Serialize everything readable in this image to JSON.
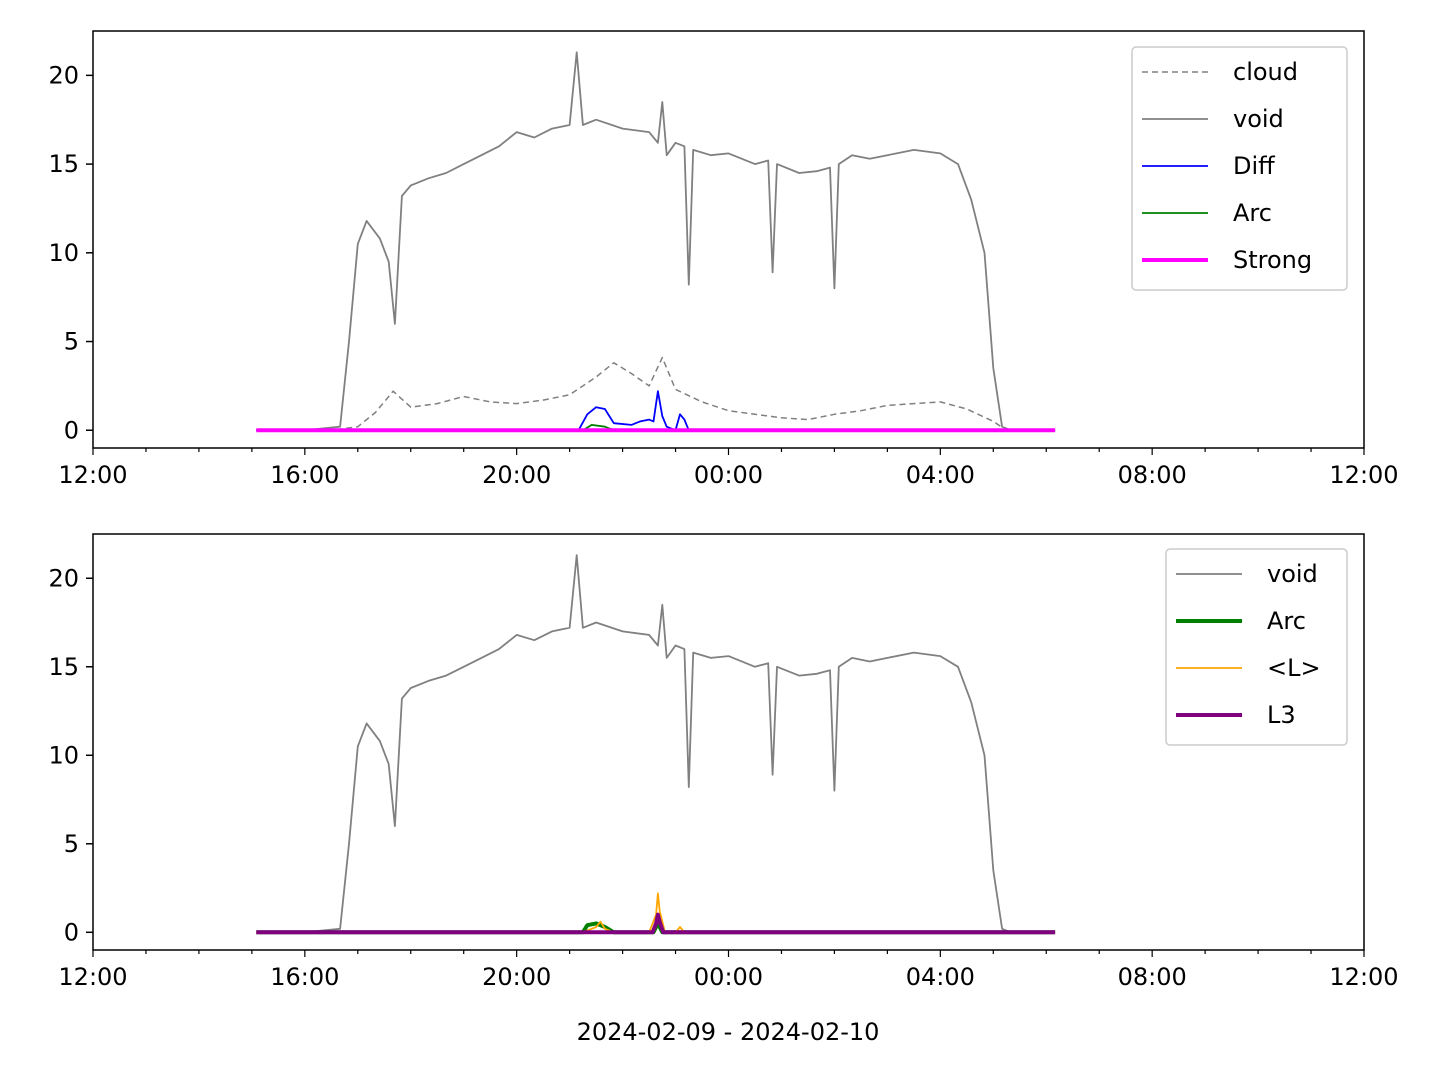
{
  "figure_xlabel": "2024-02-09 - 2024-02-10",
  "colors": {
    "cloud": "#808080",
    "void": "#808080",
    "Diff": "#0000ff",
    "Arc": "#008000",
    "Strong": "#ff00ff",
    "L_avg": "#ffa500",
    "L3": "#800080"
  },
  "chart_data": [
    {
      "type": "line",
      "panel": "top",
      "xlim": [
        "2024-02-09 12:00",
        "2024-02-10 12:00"
      ],
      "ylim": [
        -1,
        22.5
      ],
      "xticks": [
        "12:00",
        "16:00",
        "20:00",
        "00:00",
        "04:00",
        "08:00",
        "12:00"
      ],
      "yticks": [
        0,
        5,
        10,
        15,
        20
      ],
      "legend_position": "top-right",
      "grid": false,
      "series": [
        {
          "name": "cloud",
          "style": "dashed",
          "x": [
            "2024-02-09 15:05",
            "2024-02-09 16:00",
            "2024-02-09 16:30",
            "2024-02-09 17:00",
            "2024-02-09 17:20",
            "2024-02-09 17:40",
            "2024-02-09 18:00",
            "2024-02-09 18:30",
            "2024-02-09 19:00",
            "2024-02-09 19:30",
            "2024-02-09 20:00",
            "2024-02-09 20:30",
            "2024-02-09 21:00",
            "2024-02-09 21:30",
            "2024-02-09 21:50",
            "2024-02-09 22:10",
            "2024-02-09 22:30",
            "2024-02-09 22:45",
            "2024-02-09 23:00",
            "2024-02-09 23:30",
            "2024-02-10 00:00",
            "2024-02-10 00:30",
            "2024-02-10 01:00",
            "2024-02-10 01:30",
            "2024-02-10 02:00",
            "2024-02-10 02:30",
            "2024-02-10 03:00",
            "2024-02-10 03:30",
            "2024-02-10 04:00",
            "2024-02-10 04:30",
            "2024-02-10 05:00",
            "2024-02-10 05:15",
            "2024-02-10 06:10"
          ],
          "values": [
            0,
            0,
            0,
            0.2,
            1.0,
            2.2,
            1.3,
            1.5,
            1.9,
            1.6,
            1.5,
            1.7,
            2.0,
            3.0,
            3.8,
            3.2,
            2.5,
            4.1,
            2.3,
            1.6,
            1.1,
            0.9,
            0.7,
            0.6,
            0.9,
            1.1,
            1.4,
            1.5,
            1.6,
            1.2,
            0.5,
            0,
            0
          ]
        },
        {
          "name": "void",
          "style": "solid",
          "x": [
            "2024-02-09 15:05",
            "2024-02-09 16:00",
            "2024-02-09 16:40",
            "2024-02-09 16:50",
            "2024-02-09 17:00",
            "2024-02-09 17:10",
            "2024-02-09 17:25",
            "2024-02-09 17:35",
            "2024-02-09 17:42",
            "2024-02-09 17:50",
            "2024-02-09 18:00",
            "2024-02-09 18:20",
            "2024-02-09 18:40",
            "2024-02-09 19:00",
            "2024-02-09 19:20",
            "2024-02-09 19:40",
            "2024-02-09 20:00",
            "2024-02-09 20:20",
            "2024-02-09 20:40",
            "2024-02-09 21:00",
            "2024-02-09 21:08",
            "2024-02-09 21:15",
            "2024-02-09 21:30",
            "2024-02-09 22:00",
            "2024-02-09 22:30",
            "2024-02-09 22:40",
            "2024-02-09 22:45",
            "2024-02-09 22:50",
            "2024-02-09 23:00",
            "2024-02-09 23:10",
            "2024-02-09 23:15",
            "2024-02-09 23:20",
            "2024-02-09 23:40",
            "2024-02-10 00:00",
            "2024-02-10 00:30",
            "2024-02-10 00:45",
            "2024-02-10 00:50",
            "2024-02-10 00:55",
            "2024-02-10 01:20",
            "2024-02-10 01:40",
            "2024-02-10 01:55",
            "2024-02-10 02:00",
            "2024-02-10 02:05",
            "2024-02-10 02:20",
            "2024-02-10 02:40",
            "2024-02-10 03:00",
            "2024-02-10 03:30",
            "2024-02-10 04:00",
            "2024-02-10 04:20",
            "2024-02-10 04:35",
            "2024-02-10 04:50",
            "2024-02-10 05:00",
            "2024-02-10 05:10",
            "2024-02-10 05:20",
            "2024-02-10 06:10"
          ],
          "values": [
            0,
            0,
            0.2,
            5.0,
            10.5,
            11.8,
            10.8,
            9.5,
            6.0,
            13.2,
            13.8,
            14.2,
            14.5,
            15.0,
            15.5,
            16.0,
            16.8,
            16.5,
            17.0,
            17.2,
            21.3,
            17.2,
            17.5,
            17.0,
            16.8,
            16.2,
            18.5,
            15.5,
            16.2,
            16.0,
            8.2,
            15.8,
            15.5,
            15.6,
            15.0,
            15.2,
            8.9,
            15.0,
            14.5,
            14.6,
            14.8,
            8.0,
            15.0,
            15.5,
            15.3,
            15.5,
            15.8,
            15.6,
            15.0,
            13.0,
            10.0,
            3.5,
            0.2,
            0,
            0
          ]
        },
        {
          "name": "Diff",
          "style": "solid",
          "x": [
            "2024-02-09 15:05",
            "2024-02-09 21:10",
            "2024-02-09 21:20",
            "2024-02-09 21:30",
            "2024-02-09 21:40",
            "2024-02-09 21:50",
            "2024-02-09 22:10",
            "2024-02-09 22:20",
            "2024-02-09 22:30",
            "2024-02-09 22:35",
            "2024-02-09 22:40",
            "2024-02-09 22:45",
            "2024-02-09 22:50",
            "2024-02-09 23:00",
            "2024-02-09 23:05",
            "2024-02-09 23:10",
            "2024-02-09 23:15",
            "2024-02-10 06:10"
          ],
          "values": [
            0,
            0,
            0.9,
            1.3,
            1.2,
            0.4,
            0.3,
            0.5,
            0.6,
            0.5,
            2.2,
            0.8,
            0.2,
            0,
            0.9,
            0.6,
            0,
            0
          ]
        },
        {
          "name": "Arc",
          "style": "solid",
          "x": [
            "2024-02-09 15:05",
            "2024-02-09 21:15",
            "2024-02-09 21:25",
            "2024-02-09 21:40",
            "2024-02-09 21:50",
            "2024-02-10 06:10"
          ],
          "values": [
            0,
            0,
            0.3,
            0.2,
            0,
            0
          ]
        },
        {
          "name": "Strong",
          "style": "solid",
          "x": [
            "2024-02-09 15:05",
            "2024-02-10 06:10"
          ],
          "values": [
            0,
            0
          ]
        }
      ]
    },
    {
      "type": "line",
      "panel": "bottom",
      "xlim": [
        "2024-02-09 12:00",
        "2024-02-10 12:00"
      ],
      "ylim": [
        -1,
        22.5
      ],
      "xticks": [
        "12:00",
        "16:00",
        "20:00",
        "00:00",
        "04:00",
        "08:00",
        "12:00"
      ],
      "yticks": [
        0,
        5,
        10,
        15,
        20
      ],
      "xlabel": "2024-02-09 - 2024-02-10",
      "legend_position": "top-right",
      "grid": false,
      "series": [
        {
          "name": "void",
          "style": "solid",
          "x": [
            "2024-02-09 15:05",
            "2024-02-09 16:00",
            "2024-02-09 16:40",
            "2024-02-09 16:50",
            "2024-02-09 17:00",
            "2024-02-09 17:10",
            "2024-02-09 17:25",
            "2024-02-09 17:35",
            "2024-02-09 17:42",
            "2024-02-09 17:50",
            "2024-02-09 18:00",
            "2024-02-09 18:20",
            "2024-02-09 18:40",
            "2024-02-09 19:00",
            "2024-02-09 19:20",
            "2024-02-09 19:40",
            "2024-02-09 20:00",
            "2024-02-09 20:20",
            "2024-02-09 20:40",
            "2024-02-09 21:00",
            "2024-02-09 21:08",
            "2024-02-09 21:15",
            "2024-02-09 21:30",
            "2024-02-09 22:00",
            "2024-02-09 22:30",
            "2024-02-09 22:40",
            "2024-02-09 22:45",
            "2024-02-09 22:50",
            "2024-02-09 23:00",
            "2024-02-09 23:10",
            "2024-02-09 23:15",
            "2024-02-09 23:20",
            "2024-02-09 23:40",
            "2024-02-10 00:00",
            "2024-02-10 00:30",
            "2024-02-10 00:45",
            "2024-02-10 00:50",
            "2024-02-10 00:55",
            "2024-02-10 01:20",
            "2024-02-10 01:40",
            "2024-02-10 01:55",
            "2024-02-10 02:00",
            "2024-02-10 02:05",
            "2024-02-10 02:20",
            "2024-02-10 02:40",
            "2024-02-10 03:00",
            "2024-02-10 03:30",
            "2024-02-10 04:00",
            "2024-02-10 04:20",
            "2024-02-10 04:35",
            "2024-02-10 04:50",
            "2024-02-10 05:00",
            "2024-02-10 05:10",
            "2024-02-10 05:20",
            "2024-02-10 06:10"
          ],
          "values": [
            0,
            0,
            0.2,
            5.0,
            10.5,
            11.8,
            10.8,
            9.5,
            6.0,
            13.2,
            13.8,
            14.2,
            14.5,
            15.0,
            15.5,
            16.0,
            16.8,
            16.5,
            17.0,
            17.2,
            21.3,
            17.2,
            17.5,
            17.0,
            16.8,
            16.2,
            18.5,
            15.5,
            16.2,
            16.0,
            8.2,
            15.8,
            15.5,
            15.6,
            15.0,
            15.2,
            8.9,
            15.0,
            14.5,
            14.6,
            14.8,
            8.0,
            15.0,
            15.5,
            15.3,
            15.5,
            15.8,
            15.6,
            15.0,
            13.0,
            10.0,
            3.5,
            0.2,
            0,
            0
          ]
        },
        {
          "name": "Arc",
          "style": "solid",
          "x": [
            "2024-02-09 15:05",
            "2024-02-09 21:15",
            "2024-02-09 21:20",
            "2024-02-09 21:30",
            "2024-02-09 21:40",
            "2024-02-09 21:50",
            "2024-02-09 22:35",
            "2024-02-09 22:40",
            "2024-02-09 22:45",
            "2024-02-10 06:10"
          ],
          "values": [
            0,
            0,
            0.4,
            0.5,
            0.3,
            0,
            0,
            0.5,
            0,
            0
          ]
        },
        {
          "name": "<L>",
          "style": "solid",
          "x": [
            "2024-02-09 15:05",
            "2024-02-09 21:15",
            "2024-02-09 21:25",
            "2024-02-09 21:30",
            "2024-02-09 21:35",
            "2024-02-09 21:40",
            "2024-02-09 21:50",
            "2024-02-09 22:30",
            "2024-02-09 22:38",
            "2024-02-09 22:40",
            "2024-02-09 22:42",
            "2024-02-09 22:48",
            "2024-02-09 23:00",
            "2024-02-09 23:05",
            "2024-02-09 23:10",
            "2024-02-10 06:10"
          ],
          "values": [
            0,
            0,
            0.2,
            0.3,
            0.6,
            0.2,
            0,
            0,
            1.0,
            2.2,
            1.2,
            0,
            0,
            0.3,
            0,
            0
          ]
        },
        {
          "name": "L3",
          "style": "solid",
          "x": [
            "2024-02-09 15:05",
            "2024-02-09 22:34",
            "2024-02-09 22:38",
            "2024-02-09 22:40",
            "2024-02-09 22:42",
            "2024-02-09 22:46",
            "2024-02-10 06:10"
          ],
          "values": [
            0,
            0,
            0.5,
            1.0,
            0.6,
            0,
            0
          ]
        }
      ]
    }
  ]
}
